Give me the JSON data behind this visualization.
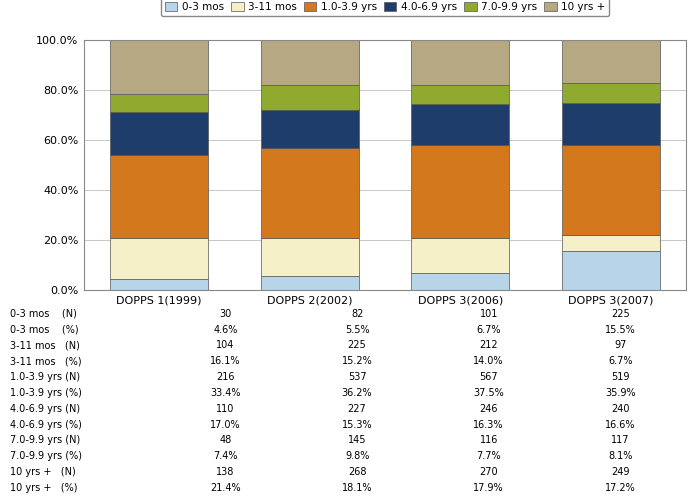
{
  "categories": [
    "DOPPS 1(1999)",
    "DOPPS 2(2002)",
    "DOPPS 3(2006)",
    "DOPPS 3(2007)"
  ],
  "series": [
    {
      "label": "0-3 mos",
      "values": [
        4.6,
        5.5,
        6.7,
        15.5
      ],
      "color": "#b8d4e8"
    },
    {
      "label": "3-11 mos",
      "values": [
        16.1,
        15.2,
        14.0,
        6.7
      ],
      "color": "#f5f0c8"
    },
    {
      "label": "1.0-3.9 yrs",
      "values": [
        33.4,
        36.2,
        37.5,
        35.9
      ],
      "color": "#d4781e"
    },
    {
      "label": "4.0-6.9 yrs",
      "values": [
        17.0,
        15.3,
        16.3,
        16.6
      ],
      "color": "#1f3d6b"
    },
    {
      "label": "7.0-9.9 yrs",
      "values": [
        7.4,
        9.8,
        7.7,
        8.1
      ],
      "color": "#8faa2e"
    },
    {
      "label": "10 yrs +",
      "values": [
        21.4,
        18.1,
        17.9,
        17.2
      ],
      "color": "#b5a882"
    }
  ],
  "ylim": [
    0,
    100
  ],
  "yticks": [
    0,
    20,
    40,
    60,
    80,
    100
  ],
  "ytick_labels": [
    "0.0%",
    "20.0%",
    "40.0%",
    "60.0%",
    "80.0%",
    "100.0%"
  ],
  "bar_width": 0.65,
  "bg_color": "#ffffff",
  "grid_color": "#c8c8c8",
  "table_row_labels": [
    "0-3 mos    (N)",
    "0-3 mos    (%)",
    "3-11 mos   (N)",
    "3-11 mos   (%)",
    "1.0-3.9 yrs (N)",
    "1.0-3.9 yrs (%)",
    "4.0-6.9 yrs (N)",
    "4.0-6.9 yrs (%)",
    "7.0-9.9 yrs (N)",
    "7.0-9.9 yrs (%)",
    "10 yrs +   (N)",
    "10 yrs +   (%)"
  ],
  "table_rows": [
    [
      30,
      82,
      101,
      225
    ],
    [
      "4.6%",
      "5.5%",
      "6.7%",
      "15.5%"
    ],
    [
      104,
      225,
      212,
      97
    ],
    [
      "16.1%",
      "15.2%",
      "14.0%",
      "6.7%"
    ],
    [
      216,
      537,
      567,
      519
    ],
    [
      "33.4%",
      "36.2%",
      "37.5%",
      "35.9%"
    ],
    [
      110,
      227,
      246,
      240
    ],
    [
      "17.0%",
      "15.3%",
      "16.3%",
      "16.6%"
    ],
    [
      48,
      145,
      116,
      117
    ],
    [
      "7.4%",
      "9.8%",
      "7.7%",
      "8.1%"
    ],
    [
      138,
      268,
      270,
      249
    ],
    [
      "21.4%",
      "18.1%",
      "17.9%",
      "17.2%"
    ]
  ]
}
